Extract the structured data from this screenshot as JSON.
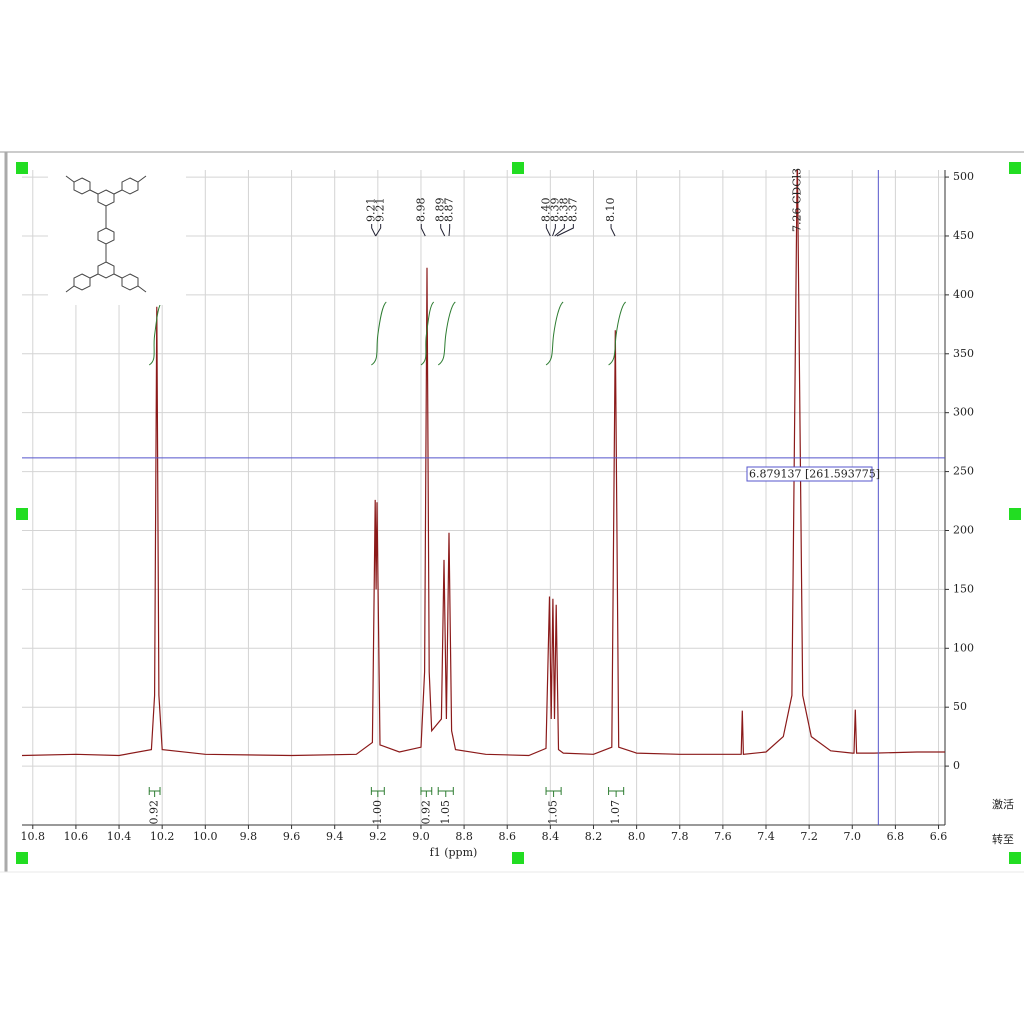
{
  "chart_data": {
    "type": "nmr",
    "x_label": "f1 (ppm)",
    "xlim": [
      10.85,
      6.57
    ],
    "xticks": [
      10.8,
      10.6,
      10.4,
      10.2,
      {
        "value": 10,
        "label": "10.0"
      },
      9.8,
      9.6,
      9.4,
      9.2,
      {
        "value": 9,
        "label": "9.0"
      },
      8.8,
      8.6,
      8.4,
      8.2,
      {
        "value": 8,
        "label": "8.0"
      },
      7.8,
      7.6,
      7.4,
      7.2,
      {
        "value": 7,
        "label": "7.0"
      },
      6.8,
      6.6
    ],
    "ylim": [
      -50,
      506
    ],
    "yticks": [
      0,
      50,
      100,
      150,
      200,
      250,
      300,
      350,
      400,
      450,
      500
    ],
    "grid": true,
    "series": [
      {
        "color": "#8b1a1a",
        "x": [
          10.85,
          10.6,
          10.4,
          10.25,
          10.235,
          10.225,
          10.215,
          10.2,
          10.0,
          9.6,
          9.3,
          9.225,
          9.212,
          9.208,
          9.204,
          9.19,
          9.1,
          9.0,
          8.983,
          8.972,
          8.962,
          8.95,
          8.905,
          8.893,
          8.882,
          8.87,
          8.858,
          8.84,
          8.7,
          8.5,
          8.42,
          8.404,
          8.396,
          8.388,
          8.381,
          8.373,
          8.362,
          8.34,
          8.2,
          8.115,
          8.099,
          8.083,
          8.0,
          7.8,
          7.6,
          7.515,
          7.51,
          7.505,
          7.4,
          7.32,
          7.28,
          7.255,
          7.23,
          7.19,
          7.1,
          7.0,
          6.992,
          6.986,
          6.98,
          6.9,
          6.7,
          6.57
        ],
        "values": [
          9,
          10,
          9,
          14,
          60,
          390,
          60,
          14,
          10,
          9,
          10,
          20,
          226,
          150,
          224,
          18,
          12,
          16,
          80,
          423,
          80,
          30,
          40,
          175,
          40,
          198,
          30,
          14,
          10,
          9,
          15,
          144,
          40,
          142,
          40,
          137,
          14,
          11,
          10,
          16,
          370,
          16,
          11,
          10,
          10,
          10,
          47,
          10,
          12,
          25,
          60,
          520,
          60,
          25,
          13,
          11,
          11,
          48,
          11,
          11,
          12,
          12
        ]
      }
    ],
    "peak_labels": [
      9.21,
      9.21,
      8.98,
      8.89,
      8.87,
      {
        "value": 8.4,
        "label": "8.40"
      },
      8.39,
      8.38,
      8.37,
      {
        "value": 8.1,
        "label": "8.10"
      }
    ],
    "solvent_label": "7.26 CDCl3",
    "integrals": {
      "color": "#2e7d32",
      "ranges": [
        [
          10.26,
          10.21
        ],
        [
          9.23,
          9.17
        ],
        [
          9.0,
          8.95
        ],
        [
          8.92,
          8.85
        ],
        [
          8.42,
          8.35
        ],
        [
          8.13,
          8.06
        ]
      ],
      "values": [
        0.92,
        1.0,
        0.92,
        1.05,
        1.05,
        1.07
      ],
      "value_labels": [
        "0.92",
        "1.00",
        "0.92",
        "1.05",
        "1.05",
        "1.07"
      ]
    },
    "cursor": {
      "x": 6.879137,
      "y": 261.593775,
      "label": "6.879137 [261.593775]",
      "color": "#5555cc"
    },
    "watermark": [
      "激活",
      "转至"
    ]
  }
}
